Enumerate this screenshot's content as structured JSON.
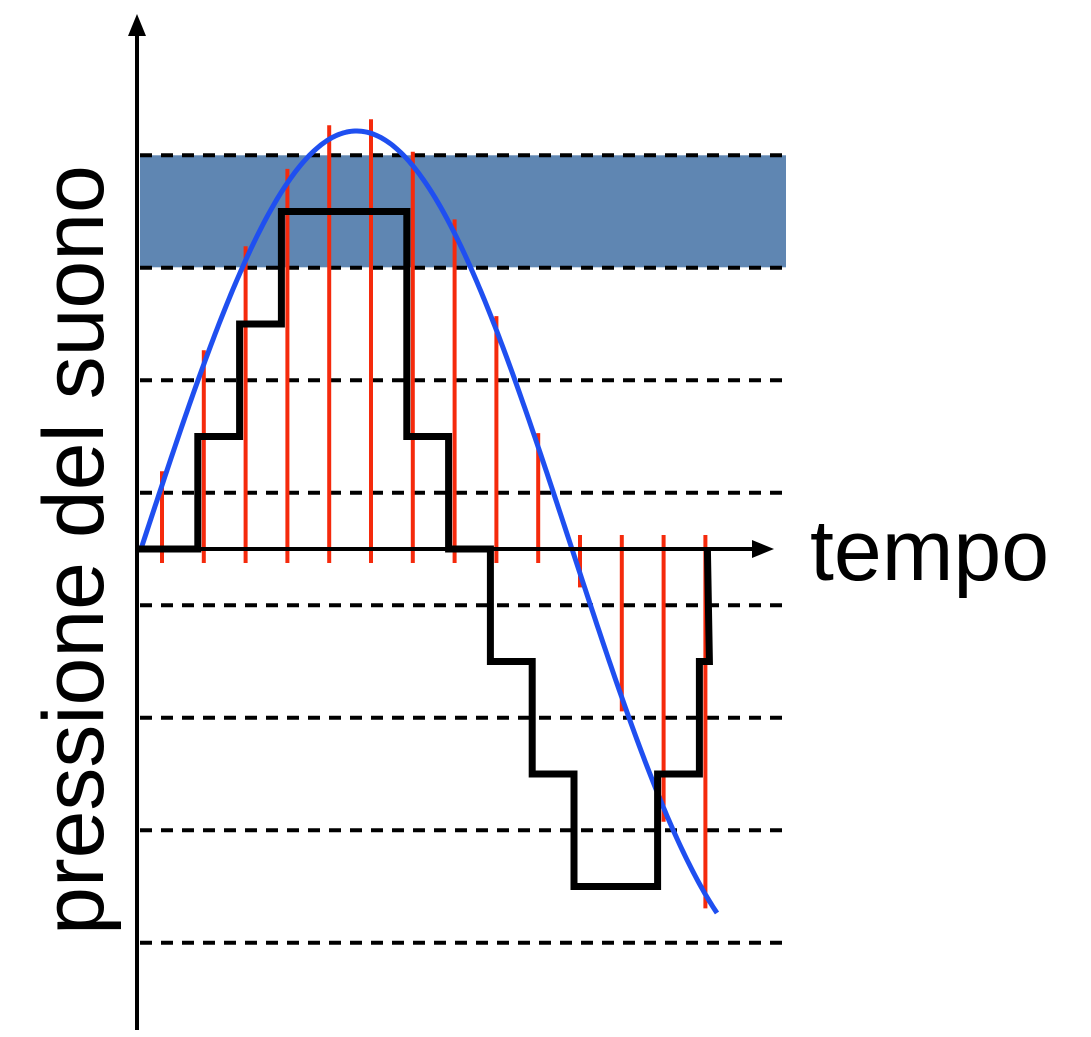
{
  "diagram": {
    "x_axis_label": "tempo",
    "y_axis_label": "pressione del suono",
    "colors": {
      "background": "#ffffff",
      "axis": "#000000",
      "signal": "#1f4ff0",
      "samples": "#f52a0c",
      "quantized": "#000000",
      "band": "#5f86b2",
      "levels": "#000000"
    },
    "highlighted_band_level": 3,
    "sample_count": 14,
    "quantized_levels": [
      0,
      1,
      2,
      3,
      3,
      3,
      1,
      0,
      -1,
      -2,
      -3,
      -3,
      -2,
      -1
    ]
  }
}
